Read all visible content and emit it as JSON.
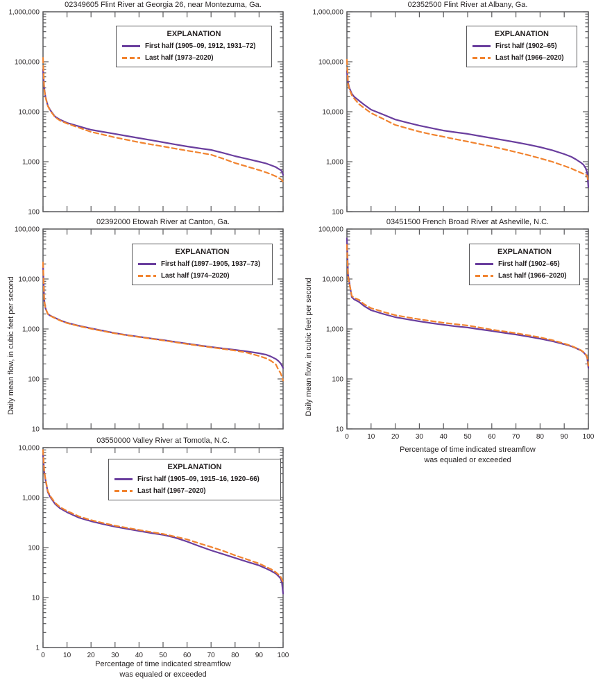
{
  "figure": {
    "y_axis_label": "Daily mean flow, in cubic feet per second",
    "x_axis_label_line1": "Percentage of time indicated streamflow",
    "x_axis_label_line2": "was equaled or exceeded",
    "legend_title": "EXPLANATION",
    "colors": {
      "first_half": "#6a3e9e",
      "last_half": "#f1832f",
      "frame": "#59595b",
      "text": "#231f20"
    }
  },
  "chart_data": [
    {
      "type": "line",
      "title": "02349605 Flint River at Georgia 26, near Montezuma, Ga.",
      "log_y": true,
      "ylim": [
        100,
        1000000
      ],
      "xlim": [
        0,
        100
      ],
      "x_tick_step": 10,
      "x": [
        0,
        0.5,
        1,
        2,
        3,
        5,
        7,
        10,
        15,
        20,
        25,
        30,
        35,
        40,
        45,
        50,
        55,
        60,
        65,
        70,
        75,
        80,
        85,
        90,
        93,
        95,
        97,
        98,
        99,
        99.5,
        100
      ],
      "series": [
        {
          "name": "first-half",
          "label": "First half (1905–09, 1912, 1931–72)",
          "style": "solid",
          "color": "#6a3e9e",
          "values": [
            70000,
            30000,
            20000,
            13300,
            10800,
            8000,
            7000,
            6000,
            5100,
            4350,
            3950,
            3600,
            3270,
            2970,
            2700,
            2450,
            2220,
            2020,
            1860,
            1720,
            1500,
            1290,
            1140,
            1000,
            920,
            850,
            780,
            725,
            680,
            640,
            545
          ]
        },
        {
          "name": "last-half",
          "label": "Last half (1973–2020)",
          "style": "dashed",
          "color": "#f1832f",
          "values": [
            120000,
            29000,
            19500,
            13000,
            10500,
            7800,
            6700,
            5800,
            4800,
            3950,
            3480,
            3060,
            2740,
            2450,
            2220,
            2020,
            1830,
            1670,
            1520,
            1380,
            1150,
            940,
            800,
            680,
            610,
            560,
            510,
            480,
            450,
            425,
            395
          ]
        }
      ]
    },
    {
      "type": "line",
      "title": "02352500 Flint River at Albany, Ga.",
      "log_y": true,
      "ylim": [
        100,
        1000000
      ],
      "xlim": [
        0,
        100
      ],
      "x_tick_step": 10,
      "x": [
        0,
        0.5,
        1,
        2,
        3,
        5,
        7,
        10,
        15,
        20,
        25,
        30,
        35,
        40,
        45,
        50,
        55,
        60,
        65,
        70,
        75,
        80,
        85,
        90,
        93,
        95,
        97,
        98,
        99,
        99.5,
        100
      ],
      "series": [
        {
          "name": "first-half",
          "label": "First half (1902–65)",
          "style": "solid",
          "color": "#6a3e9e",
          "values": [
            65000,
            38000,
            30000,
            23000,
            20000,
            16700,
            14000,
            11000,
            8800,
            7000,
            6050,
            5300,
            4700,
            4200,
            3880,
            3600,
            3270,
            2970,
            2700,
            2450,
            2200,
            1960,
            1700,
            1420,
            1250,
            1100,
            950,
            870,
            725,
            600,
            310
          ]
        },
        {
          "name": "last-half",
          "label": "Last half (1966–2020)",
          "style": "dashed",
          "color": "#f1832f",
          "values": [
            110000,
            36000,
            28500,
            21500,
            18500,
            14200,
            12000,
            9400,
            7200,
            5450,
            4650,
            4000,
            3530,
            3160,
            2820,
            2530,
            2260,
            2020,
            1780,
            1560,
            1360,
            1170,
            1000,
            825,
            730,
            660,
            600,
            570,
            545,
            520,
            395
          ]
        }
      ]
    },
    {
      "type": "line",
      "title": "02392000 Etowah River at Canton, Ga.",
      "log_y": true,
      "ylim": [
        10,
        100000
      ],
      "xlim": [
        0,
        100
      ],
      "x_tick_step": 10,
      "x": [
        0,
        0.5,
        1,
        2,
        3,
        5,
        7,
        10,
        15,
        20,
        25,
        30,
        35,
        40,
        45,
        50,
        55,
        60,
        65,
        70,
        75,
        80,
        85,
        90,
        93,
        95,
        97,
        98,
        99,
        99.5,
        100
      ],
      "series": [
        {
          "name": "first-half",
          "label": "First half (1897–1905, 1937–73)",
          "style": "solid",
          "color": "#6a3e9e",
          "values": [
            20000,
            3800,
            2600,
            2000,
            1850,
            1670,
            1500,
            1330,
            1160,
            1030,
            920,
            825,
            755,
            700,
            645,
            600,
            552,
            510,
            470,
            435,
            407,
            382,
            355,
            327,
            305,
            280,
            250,
            230,
            205,
            185,
            165
          ]
        },
        {
          "name": "last-half",
          "label": "Last half (1974–2020)",
          "style": "dashed",
          "color": "#f1832f",
          "values": [
            21500,
            3800,
            2600,
            2000,
            1830,
            1640,
            1480,
            1310,
            1140,
            1010,
            905,
            815,
            745,
            690,
            637,
            590,
            543,
            500,
            462,
            428,
            398,
            370,
            335,
            288,
            258,
            230,
            195,
            155,
            130,
            110,
            93
          ]
        }
      ]
    },
    {
      "type": "line",
      "title": "03451500 French Broad River at Asheville, N.C.",
      "log_y": true,
      "ylim": [
        10,
        100000
      ],
      "xlim": [
        0,
        100
      ],
      "x_tick_step": 10,
      "x": [
        0,
        0.5,
        1,
        2,
        3,
        5,
        7,
        10,
        15,
        20,
        25,
        30,
        35,
        40,
        45,
        50,
        55,
        60,
        65,
        70,
        75,
        80,
        85,
        90,
        93,
        95,
        97,
        98,
        99,
        99.5,
        100
      ],
      "series": [
        {
          "name": "first-half",
          "label": "First half (1902–65)",
          "style": "solid",
          "color": "#6a3e9e",
          "values": [
            65000,
            12000,
            8500,
            4350,
            3900,
            3480,
            2900,
            2370,
            2000,
            1720,
            1560,
            1420,
            1310,
            1210,
            1130,
            1070,
            985,
            910,
            840,
            775,
            705,
            640,
            570,
            495,
            450,
            410,
            370,
            340,
            300,
            265,
            167
          ]
        },
        {
          "name": "last-half",
          "label": "Last half (1966–2020)",
          "style": "dashed",
          "color": "#f1832f",
          "values": [
            48000,
            11000,
            8200,
            4600,
            4200,
            3830,
            3150,
            2610,
            2200,
            1890,
            1710,
            1565,
            1440,
            1330,
            1245,
            1175,
            1070,
            970,
            895,
            825,
            750,
            680,
            600,
            510,
            460,
            415,
            375,
            345,
            305,
            270,
            184
          ]
        }
      ]
    },
    {
      "type": "line",
      "title": "03550000 Valley River at Tomotla, N.C.",
      "log_y": true,
      "ylim": [
        1,
        10000
      ],
      "xlim": [
        0,
        100
      ],
      "x_tick_step": 10,
      "x": [
        0,
        0.5,
        1,
        2,
        3,
        5,
        7,
        10,
        15,
        20,
        25,
        30,
        35,
        40,
        45,
        50,
        55,
        60,
        65,
        70,
        75,
        80,
        85,
        90,
        93,
        95,
        97,
        98,
        99,
        99.5,
        100
      ],
      "series": [
        {
          "name": "first-half",
          "label": "First half (1905–09, 1915–16, 1920–66)",
          "style": "solid",
          "color": "#6a3e9e",
          "values": [
            7500,
            3300,
            2300,
            1290,
            1030,
            750,
            615,
            510,
            395,
            337,
            295,
            262,
            237,
            215,
            196,
            180,
            158,
            132,
            107,
            88,
            74,
            62,
            52,
            44,
            38,
            34,
            30,
            27,
            24,
            20,
            12
          ]
        },
        {
          "name": "last-half",
          "label": "Last half (1967–2020)",
          "style": "dashed",
          "color": "#f1832f",
          "values": [
            9000,
            3400,
            2400,
            1350,
            1080,
            790,
            650,
            540,
            420,
            355,
            310,
            275,
            248,
            225,
            205,
            188,
            166,
            146,
            122,
            103,
            86,
            70,
            58,
            48,
            41,
            37,
            32,
            29,
            26,
            23,
            20
          ]
        }
      ]
    }
  ]
}
